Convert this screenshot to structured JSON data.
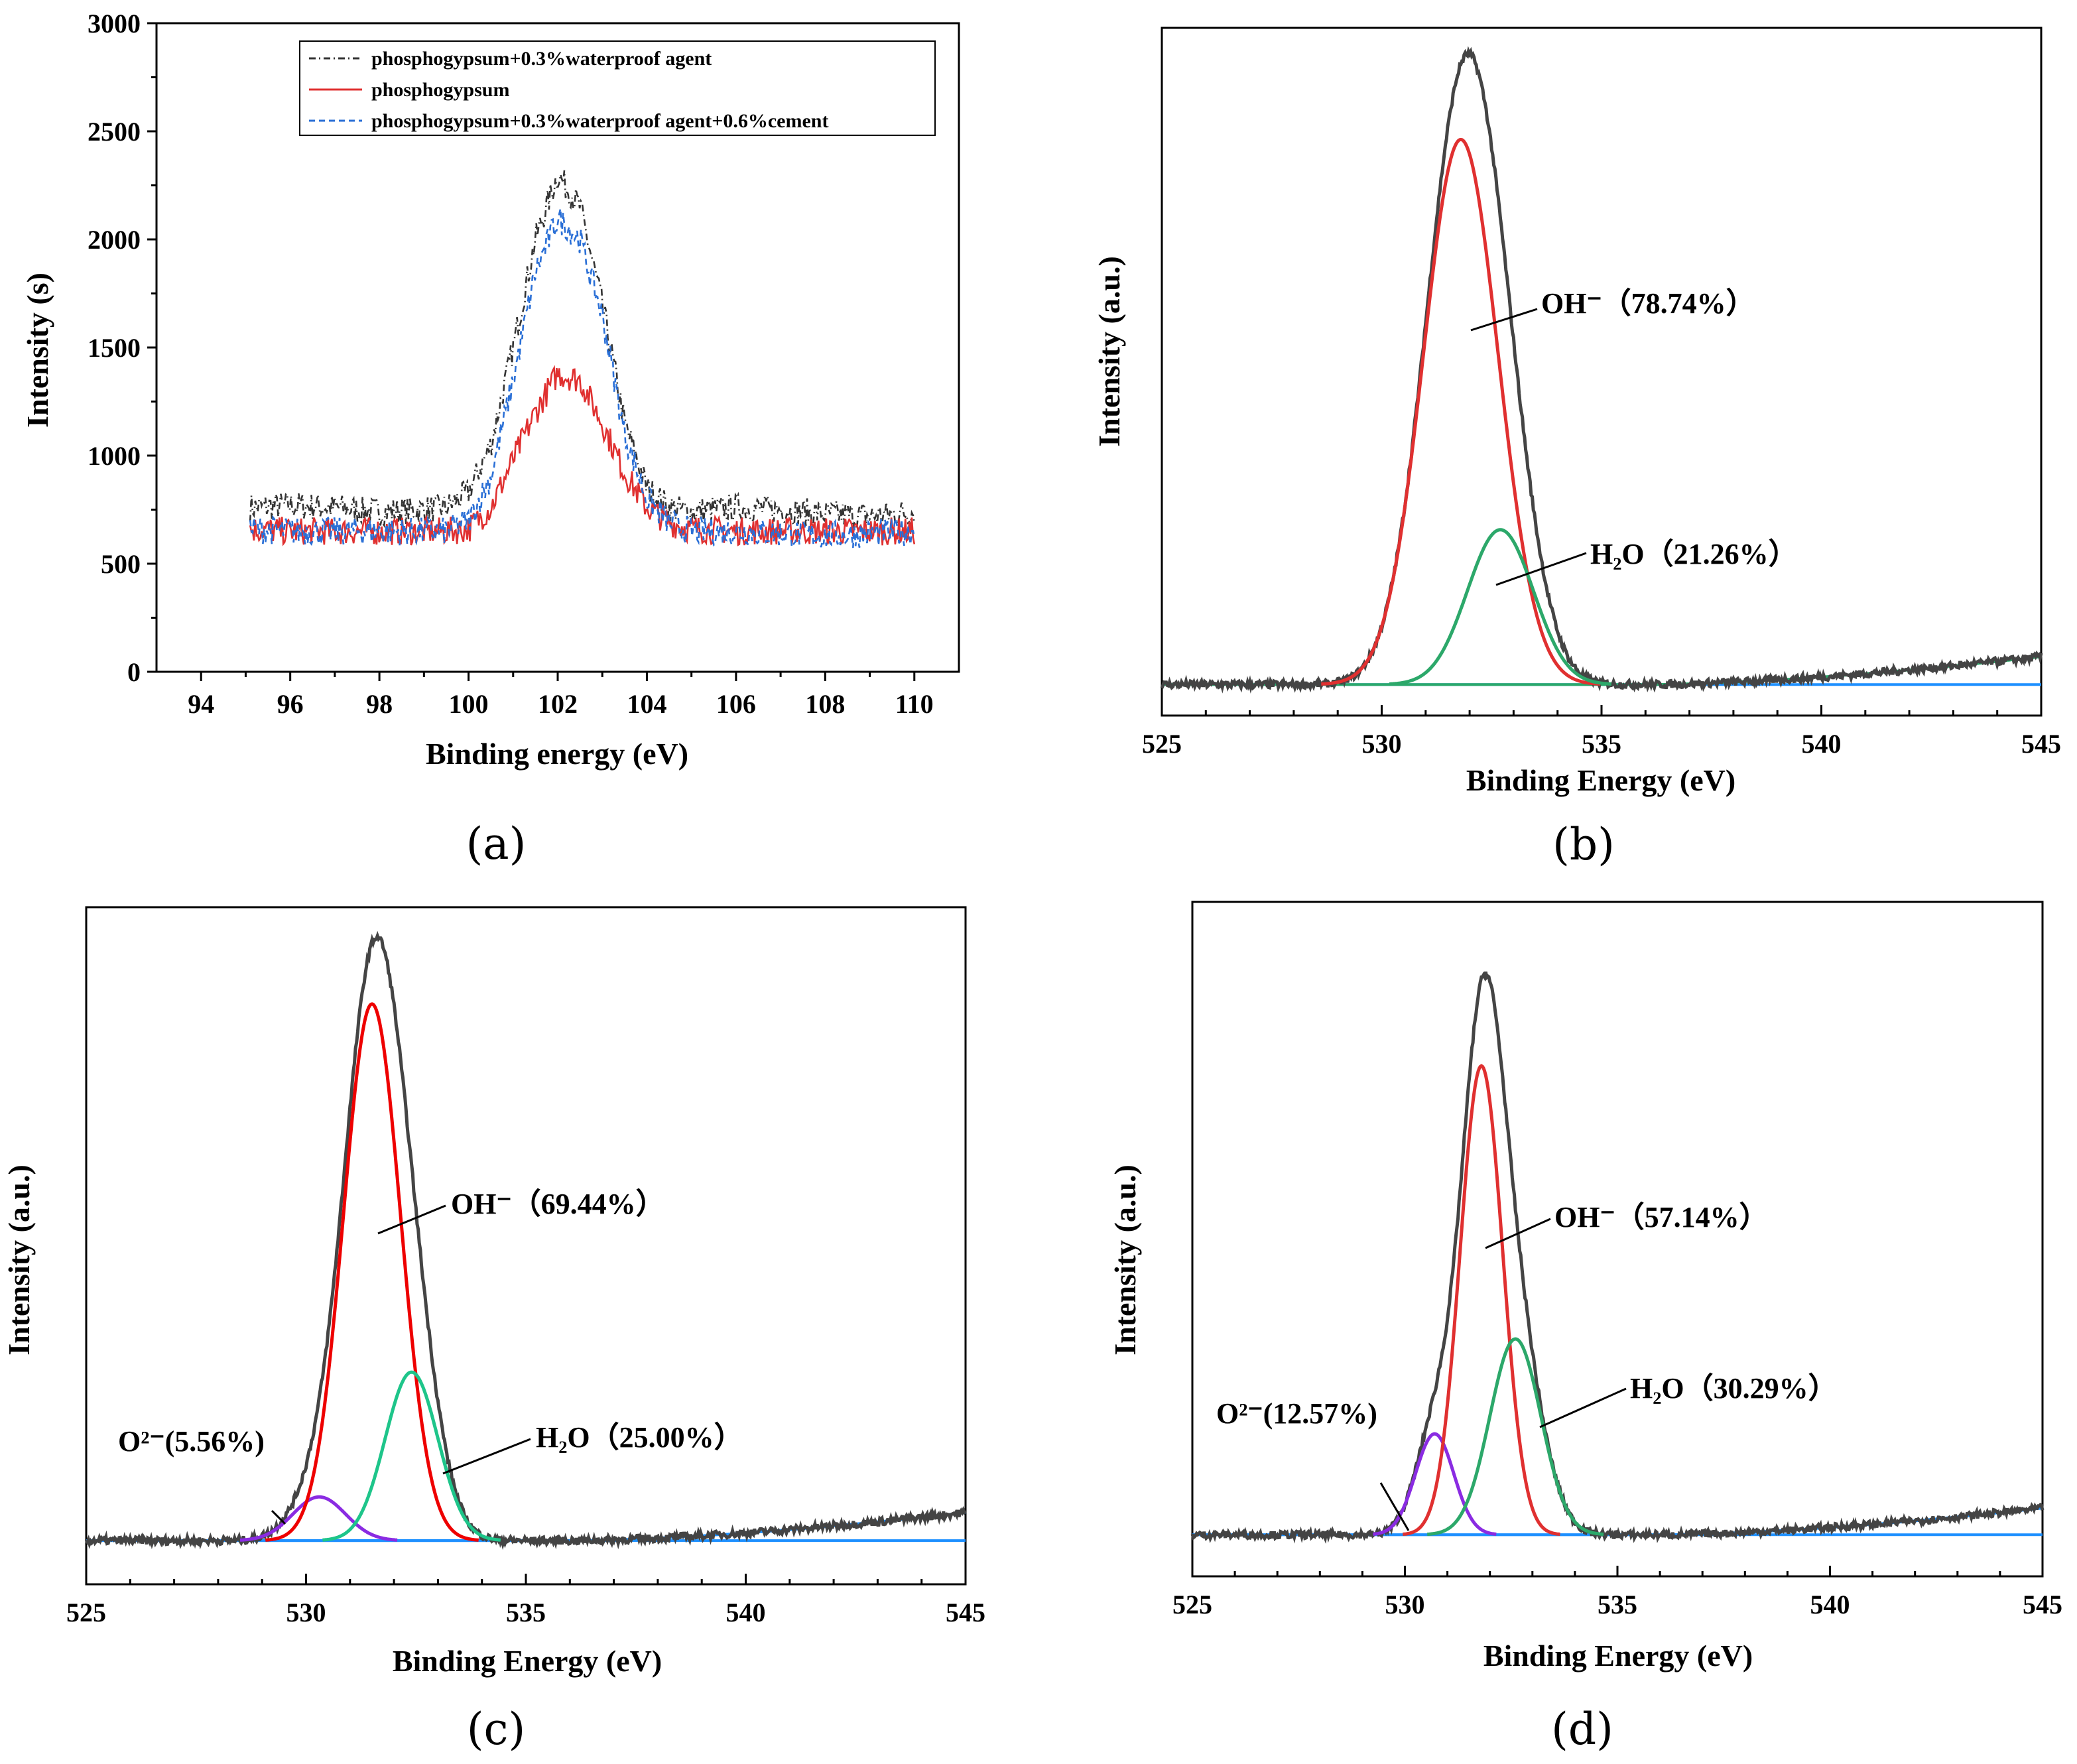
{
  "panels": [
    {
      "id": "a",
      "label": "(a)",
      "chart_data": {
        "type": "line",
        "xlabel": "Binding energy (eV)",
        "ylabel": "Intensity (s)",
        "xlim": [
          93,
          111
        ],
        "ylim": [
          0,
          3000
        ],
        "xticks": [
          94,
          96,
          98,
          100,
          102,
          104,
          106,
          108,
          110
        ],
        "yticks": [
          0,
          500,
          1000,
          1500,
          2000,
          2500,
          3000
        ],
        "legend_position": "top-right",
        "series": [
          {
            "name": "phosphogypsum+0.3%waterproof agent",
            "color": "#333333",
            "style": "dashdot",
            "x": [
              95.1,
              96,
              97,
              98,
              99,
              99.5,
              100,
              100.5,
              101,
              101.5,
              102,
              102.5,
              103,
              103.5,
              104,
              104.5,
              105,
              106,
              107,
              108,
              109,
              110
            ],
            "y": [
              760,
              770,
              760,
              740,
              750,
              760,
              830,
              1050,
              1500,
              2000,
              2300,
              2150,
              1700,
              1150,
              850,
              760,
              740,
              760,
              750,
              730,
              720,
              740
            ]
          },
          {
            "name": "phosphogypsum",
            "color": "#e03030",
            "style": "solid",
            "x": [
              95.1,
              96,
              97,
              98,
              99,
              99.5,
              100,
              100.5,
              101,
              101.5,
              102,
              102.5,
              103,
              103.5,
              104,
              104.5,
              105,
              106,
              107,
              108,
              109,
              110
            ],
            "y": [
              660,
              650,
              650,
              650,
              650,
              650,
              660,
              760,
              980,
              1200,
              1380,
              1350,
              1150,
              920,
              760,
              690,
              660,
              650,
              650,
              650,
              650,
              650
            ]
          },
          {
            "name": "phosphogypsum+0.3%waterproof agent+0.6%cement",
            "color": "#2a6fd6",
            "style": "dashed",
            "x": [
              95.1,
              96,
              97,
              98,
              99,
              99.5,
              100,
              100.5,
              101,
              101.5,
              102,
              102.5,
              103,
              103.5,
              104,
              104.5,
              105,
              106,
              107,
              108,
              109,
              110
            ],
            "y": [
              660,
              650,
              650,
              650,
              650,
              650,
              700,
              900,
              1350,
              1850,
              2100,
              2000,
              1650,
              1100,
              800,
              690,
              650,
              650,
              640,
              630,
              640,
              650
            ]
          }
        ]
      }
    },
    {
      "id": "b",
      "label": "(b)",
      "chart_data": {
        "type": "line",
        "xlabel": "Binding Energy (eV)",
        "ylabel": "Intensity (a.u.)",
        "xlim": [
          525,
          545
        ],
        "xticks": [
          525,
          530,
          535,
          540,
          545
        ],
        "baseline": 0.05,
        "peaks": [
          {
            "name": "OH⁻",
            "label": "OH⁻（78.74%）",
            "center": 531.8,
            "sigma": 0.85,
            "amplitude": 0.88,
            "color": "#e03030"
          },
          {
            "name": "H2O",
            "label": "H₂O（21.26%）",
            "center": 532.7,
            "sigma": 0.75,
            "amplitude": 0.25,
            "color": "#2ca86a"
          }
        ]
      }
    },
    {
      "id": "c",
      "label": "(c)",
      "chart_data": {
        "type": "line",
        "xlabel": "Binding Energy (eV)",
        "ylabel": "Intensity (a.u.)",
        "xlim": [
          525,
          545
        ],
        "xticks": [
          525,
          530,
          535,
          540,
          545
        ],
        "baseline": 0.07,
        "peaks": [
          {
            "name": "O2-",
            "label": "O²⁻(5.56%)",
            "center": 530.3,
            "sigma": 0.6,
            "amplitude": 0.07,
            "color": "#8a2be2"
          },
          {
            "name": "OH⁻",
            "label": "OH⁻（69.44%）",
            "center": 531.5,
            "sigma": 0.65,
            "amplitude": 0.86,
            "color": "#ee0000"
          },
          {
            "name": "H2O",
            "label": "H₂O（25.00%）",
            "center": 532.4,
            "sigma": 0.6,
            "amplitude": 0.27,
            "color": "#1ec58a"
          }
        ]
      }
    },
    {
      "id": "d",
      "label": "(d)",
      "chart_data": {
        "type": "line",
        "xlabel": "Binding Energy (eV)",
        "ylabel": "Intensity (a.u.)",
        "xlim": [
          525,
          545
        ],
        "xticks": [
          525,
          530,
          535,
          540,
          545
        ],
        "baseline": 0.07,
        "peaks": [
          {
            "name": "O2-",
            "label": "O²⁻(12.57%)",
            "center": 530.7,
            "sigma": 0.45,
            "amplitude": 0.17,
            "color": "#8a2be2"
          },
          {
            "name": "OH⁻",
            "label": "OH⁻（57.14%）",
            "center": 531.8,
            "sigma": 0.5,
            "amplitude": 0.79,
            "color": "#e03030"
          },
          {
            "name": "H2O",
            "label": "H₂O（30.29%）",
            "center": 532.6,
            "sigma": 0.6,
            "amplitude": 0.33,
            "color": "#2ca86a"
          }
        ]
      }
    }
  ],
  "colors": {
    "envelope": "#444444",
    "baseline": "#1e90ff"
  }
}
